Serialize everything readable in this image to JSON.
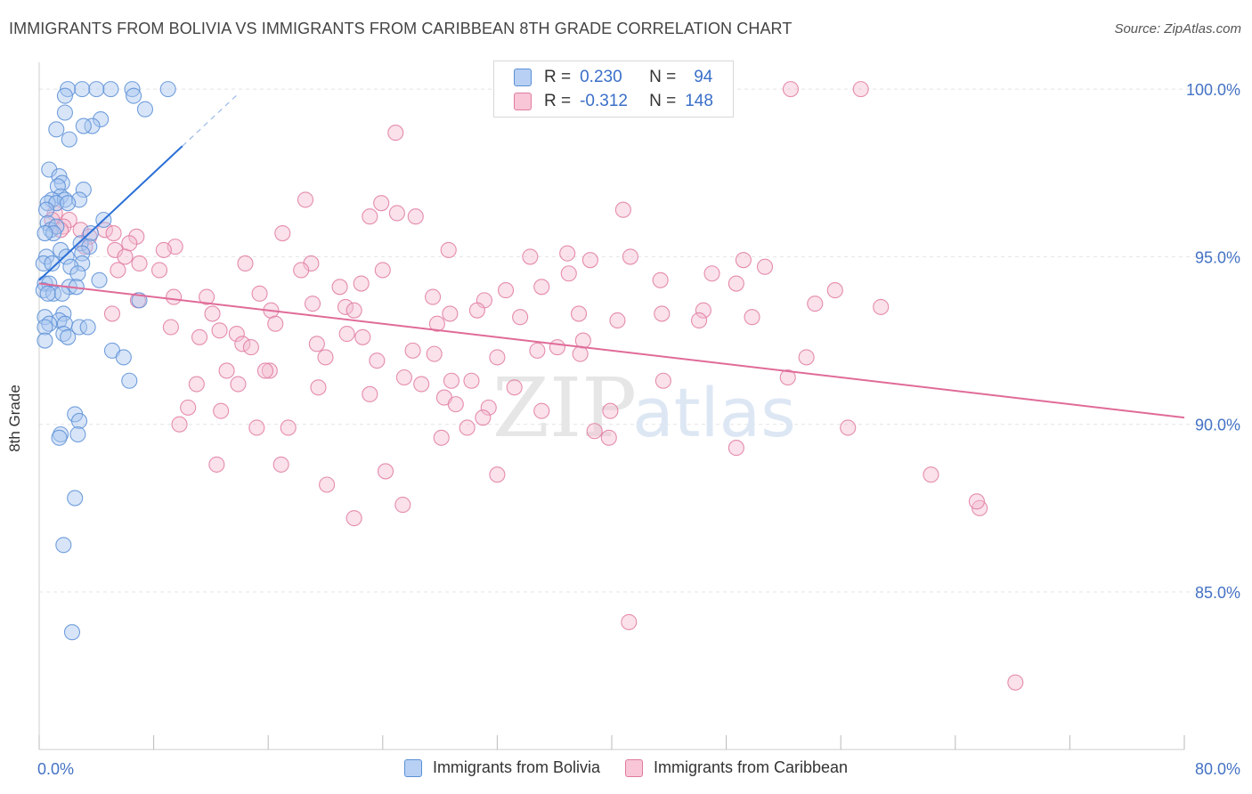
{
  "title": "IMMIGRANTS FROM BOLIVIA VS IMMIGRANTS FROM CARIBBEAN 8TH GRADE CORRELATION CHART",
  "source": "Source: ZipAtlas.com",
  "watermark": {
    "zip": "ZIP",
    "atlas": "atlas"
  },
  "colors": {
    "blue": "#5b8fd6",
    "blue_fill": "#a9c6f0",
    "pink": "#e07aa0",
    "pink_fill": "#f5bcd0",
    "tick_text": "#4472c4"
  },
  "stats": [
    {
      "r_label": "R =",
      "r_value": "0.230",
      "n_label": "N =",
      "n_value": "94"
    },
    {
      "r_label": "R =",
      "r_value": "-0.312",
      "n_label": "N =",
      "n_value": "148"
    }
  ],
  "legend": [
    "Immigrants from Bolivia",
    "Immigrants from Caribbean"
  ],
  "chart_data": {
    "type": "scatter",
    "title": "IMMIGRANTS FROM BOLIVIA VS IMMIGRANTS FROM CARIBBEAN 8TH GRADE CORRELATION CHART",
    "xlabel": "",
    "ylabel": "8th Grade",
    "xlim": [
      0,
      80
    ],
    "ylim": [
      80.3,
      100.8
    ],
    "x_tick_labels": [
      "0.0%",
      "80.0%"
    ],
    "y_ticks": [
      85,
      90,
      95,
      100
    ],
    "y_tick_labels": [
      "85.0%",
      "90.0%",
      "95.0%",
      "100.0%"
    ],
    "series": [
      {
        "name": "Immigrants from Bolivia",
        "trend": {
          "x0": 0.0,
          "y0": 94.3,
          "x1": 10.0,
          "y1": 98.3,
          "dashed_to_x": 14.0
        },
        "points": [
          [
            2.0,
            100.0
          ],
          [
            3.0,
            100.0
          ],
          [
            4.0,
            100.0
          ],
          [
            5.0,
            100.0
          ],
          [
            6.5,
            100.0
          ],
          [
            9.0,
            100.0
          ],
          [
            1.8,
            99.8
          ],
          [
            6.6,
            99.8
          ],
          [
            7.4,
            99.4
          ],
          [
            1.8,
            99.3
          ],
          [
            4.3,
            99.1
          ],
          [
            3.7,
            98.9
          ],
          [
            1.2,
            98.8
          ],
          [
            3.1,
            98.9
          ],
          [
            2.1,
            98.5
          ],
          [
            0.7,
            97.6
          ],
          [
            1.4,
            97.4
          ],
          [
            1.6,
            97.2
          ],
          [
            1.3,
            97.1
          ],
          [
            3.1,
            97.0
          ],
          [
            1.5,
            96.8
          ],
          [
            0.9,
            96.7
          ],
          [
            1.8,
            96.7
          ],
          [
            2.8,
            96.7
          ],
          [
            0.6,
            96.6
          ],
          [
            1.2,
            96.6
          ],
          [
            2.0,
            96.6
          ],
          [
            0.5,
            96.4
          ],
          [
            4.5,
            96.1
          ],
          [
            0.6,
            96.0
          ],
          [
            0.8,
            95.8
          ],
          [
            1.2,
            95.9
          ],
          [
            1.0,
            95.7
          ],
          [
            0.4,
            95.7
          ],
          [
            3.6,
            95.7
          ],
          [
            2.9,
            95.4
          ],
          [
            3.5,
            95.3
          ],
          [
            1.5,
            95.2
          ],
          [
            3.0,
            95.1
          ],
          [
            0.5,
            95.0
          ],
          [
            1.9,
            95.0
          ],
          [
            0.3,
            94.8
          ],
          [
            0.9,
            94.8
          ],
          [
            3.0,
            94.8
          ],
          [
            2.2,
            94.7
          ],
          [
            2.7,
            94.5
          ],
          [
            0.4,
            94.2
          ],
          [
            0.7,
            94.2
          ],
          [
            4.2,
            94.3
          ],
          [
            2.1,
            94.1
          ],
          [
            2.6,
            94.1
          ],
          [
            0.3,
            94.0
          ],
          [
            1.0,
            93.9
          ],
          [
            1.6,
            93.9
          ],
          [
            0.6,
            93.9
          ],
          [
            7.0,
            93.7
          ],
          [
            1.7,
            93.3
          ],
          [
            0.4,
            93.2
          ],
          [
            1.4,
            93.1
          ],
          [
            0.7,
            93.0
          ],
          [
            1.8,
            93.0
          ],
          [
            2.8,
            92.9
          ],
          [
            0.4,
            92.9
          ],
          [
            3.4,
            92.9
          ],
          [
            1.7,
            92.7
          ],
          [
            2.0,
            92.6
          ],
          [
            0.4,
            92.5
          ],
          [
            5.1,
            92.2
          ],
          [
            5.9,
            92.0
          ],
          [
            6.3,
            91.3
          ],
          [
            2.5,
            90.3
          ],
          [
            2.8,
            90.1
          ],
          [
            1.5,
            89.7
          ],
          [
            1.4,
            89.6
          ],
          [
            2.7,
            89.7
          ],
          [
            2.5,
            87.8
          ],
          [
            1.7,
            86.4
          ],
          [
            2.3,
            83.8
          ]
        ]
      },
      {
        "name": "Immigrants from Caribbean",
        "trend": {
          "x0": 0.0,
          "y0": 94.2,
          "x1": 80.0,
          "y1": 90.2
        },
        "points": [
          [
            52.5,
            100.0
          ],
          [
            57.4,
            100.0
          ],
          [
            24.9,
            98.7
          ],
          [
            18.6,
            96.7
          ],
          [
            23.9,
            96.6
          ],
          [
            40.8,
            96.4
          ],
          [
            23.1,
            96.2
          ],
          [
            25.0,
            96.3
          ],
          [
            26.3,
            96.2
          ],
          [
            1.1,
            96.3
          ],
          [
            0.9,
            96.1
          ],
          [
            2.1,
            96.1
          ],
          [
            1.7,
            95.9
          ],
          [
            2.9,
            95.8
          ],
          [
            4.6,
            95.8
          ],
          [
            1.5,
            95.8
          ],
          [
            3.5,
            95.6
          ],
          [
            5.2,
            95.7
          ],
          [
            17.0,
            95.7
          ],
          [
            6.8,
            95.6
          ],
          [
            6.3,
            95.4
          ],
          [
            3.2,
            95.3
          ],
          [
            9.5,
            95.3
          ],
          [
            5.3,
            95.2
          ],
          [
            8.7,
            95.2
          ],
          [
            28.6,
            95.2
          ],
          [
            36.9,
            95.1
          ],
          [
            6.0,
            95.0
          ],
          [
            34.3,
            95.0
          ],
          [
            41.3,
            95.0
          ],
          [
            38.5,
            94.9
          ],
          [
            49.2,
            94.9
          ],
          [
            19.0,
            94.8
          ],
          [
            14.4,
            94.8
          ],
          [
            7.0,
            94.8
          ],
          [
            18.3,
            94.6
          ],
          [
            24.0,
            94.6
          ],
          [
            5.5,
            94.6
          ],
          [
            8.4,
            94.6
          ],
          [
            50.7,
            94.7
          ],
          [
            37.0,
            94.5
          ],
          [
            47.0,
            94.5
          ],
          [
            43.4,
            94.3
          ],
          [
            48.7,
            94.2
          ],
          [
            22.5,
            94.2
          ],
          [
            35.1,
            94.1
          ],
          [
            21.0,
            94.1
          ],
          [
            55.6,
            94.0
          ],
          [
            32.6,
            94.0
          ],
          [
            15.4,
            93.9
          ],
          [
            27.5,
            93.8
          ],
          [
            9.4,
            93.8
          ],
          [
            11.7,
            93.8
          ],
          [
            31.1,
            93.7
          ],
          [
            6.9,
            93.7
          ],
          [
            19.1,
            93.6
          ],
          [
            54.2,
            93.6
          ],
          [
            58.8,
            93.5
          ],
          [
            21.4,
            93.5
          ],
          [
            30.6,
            93.4
          ],
          [
            16.2,
            93.4
          ],
          [
            12.1,
            93.3
          ],
          [
            22.0,
            93.4
          ],
          [
            5.1,
            93.3
          ],
          [
            28.7,
            93.3
          ],
          [
            37.7,
            93.3
          ],
          [
            43.5,
            93.3
          ],
          [
            46.4,
            93.4
          ],
          [
            49.8,
            93.2
          ],
          [
            33.6,
            93.2
          ],
          [
            40.4,
            93.1
          ],
          [
            27.8,
            93.0
          ],
          [
            46.1,
            93.1
          ],
          [
            16.5,
            93.0
          ],
          [
            9.2,
            92.9
          ],
          [
            12.6,
            92.8
          ],
          [
            13.8,
            92.7
          ],
          [
            11.2,
            92.6
          ],
          [
            21.5,
            92.7
          ],
          [
            22.6,
            92.6
          ],
          [
            38.0,
            92.5
          ],
          [
            14.2,
            92.4
          ],
          [
            14.8,
            92.3
          ],
          [
            19.4,
            92.4
          ],
          [
            36.2,
            92.3
          ],
          [
            34.8,
            92.2
          ],
          [
            26.1,
            92.2
          ],
          [
            27.6,
            92.1
          ],
          [
            20.0,
            92.0
          ],
          [
            37.8,
            92.1
          ],
          [
            32.0,
            92.0
          ],
          [
            53.6,
            92.0
          ],
          [
            23.6,
            91.9
          ],
          [
            16.1,
            91.6
          ],
          [
            13.1,
            91.6
          ],
          [
            15.8,
            91.6
          ],
          [
            25.5,
            91.4
          ],
          [
            28.8,
            91.3
          ],
          [
            30.2,
            91.3
          ],
          [
            26.7,
            91.2
          ],
          [
            43.6,
            91.3
          ],
          [
            52.3,
            91.4
          ],
          [
            11.0,
            91.2
          ],
          [
            13.9,
            91.2
          ],
          [
            19.5,
            91.1
          ],
          [
            33.2,
            91.1
          ],
          [
            23.1,
            90.9
          ],
          [
            28.3,
            90.8
          ],
          [
            29.1,
            90.6
          ],
          [
            31.4,
            90.5
          ],
          [
            10.4,
            90.5
          ],
          [
            12.7,
            90.4
          ],
          [
            35.1,
            90.4
          ],
          [
            39.9,
            90.4
          ],
          [
            31.0,
            90.2
          ],
          [
            9.8,
            90.0
          ],
          [
            15.2,
            89.9
          ],
          [
            17.4,
            89.9
          ],
          [
            29.9,
            89.9
          ],
          [
            38.8,
            89.8
          ],
          [
            56.5,
            89.9
          ],
          [
            28.1,
            89.6
          ],
          [
            39.8,
            89.6
          ],
          [
            48.7,
            89.3
          ],
          [
            12.4,
            88.8
          ],
          [
            16.9,
            88.8
          ],
          [
            24.2,
            88.6
          ],
          [
            32.0,
            88.5
          ],
          [
            62.3,
            88.5
          ],
          [
            20.1,
            88.2
          ],
          [
            25.4,
            87.6
          ],
          [
            65.7,
            87.5
          ],
          [
            65.5,
            87.7
          ],
          [
            22.0,
            87.2
          ],
          [
            41.2,
            84.1
          ],
          [
            68.2,
            82.3
          ]
        ]
      }
    ]
  }
}
